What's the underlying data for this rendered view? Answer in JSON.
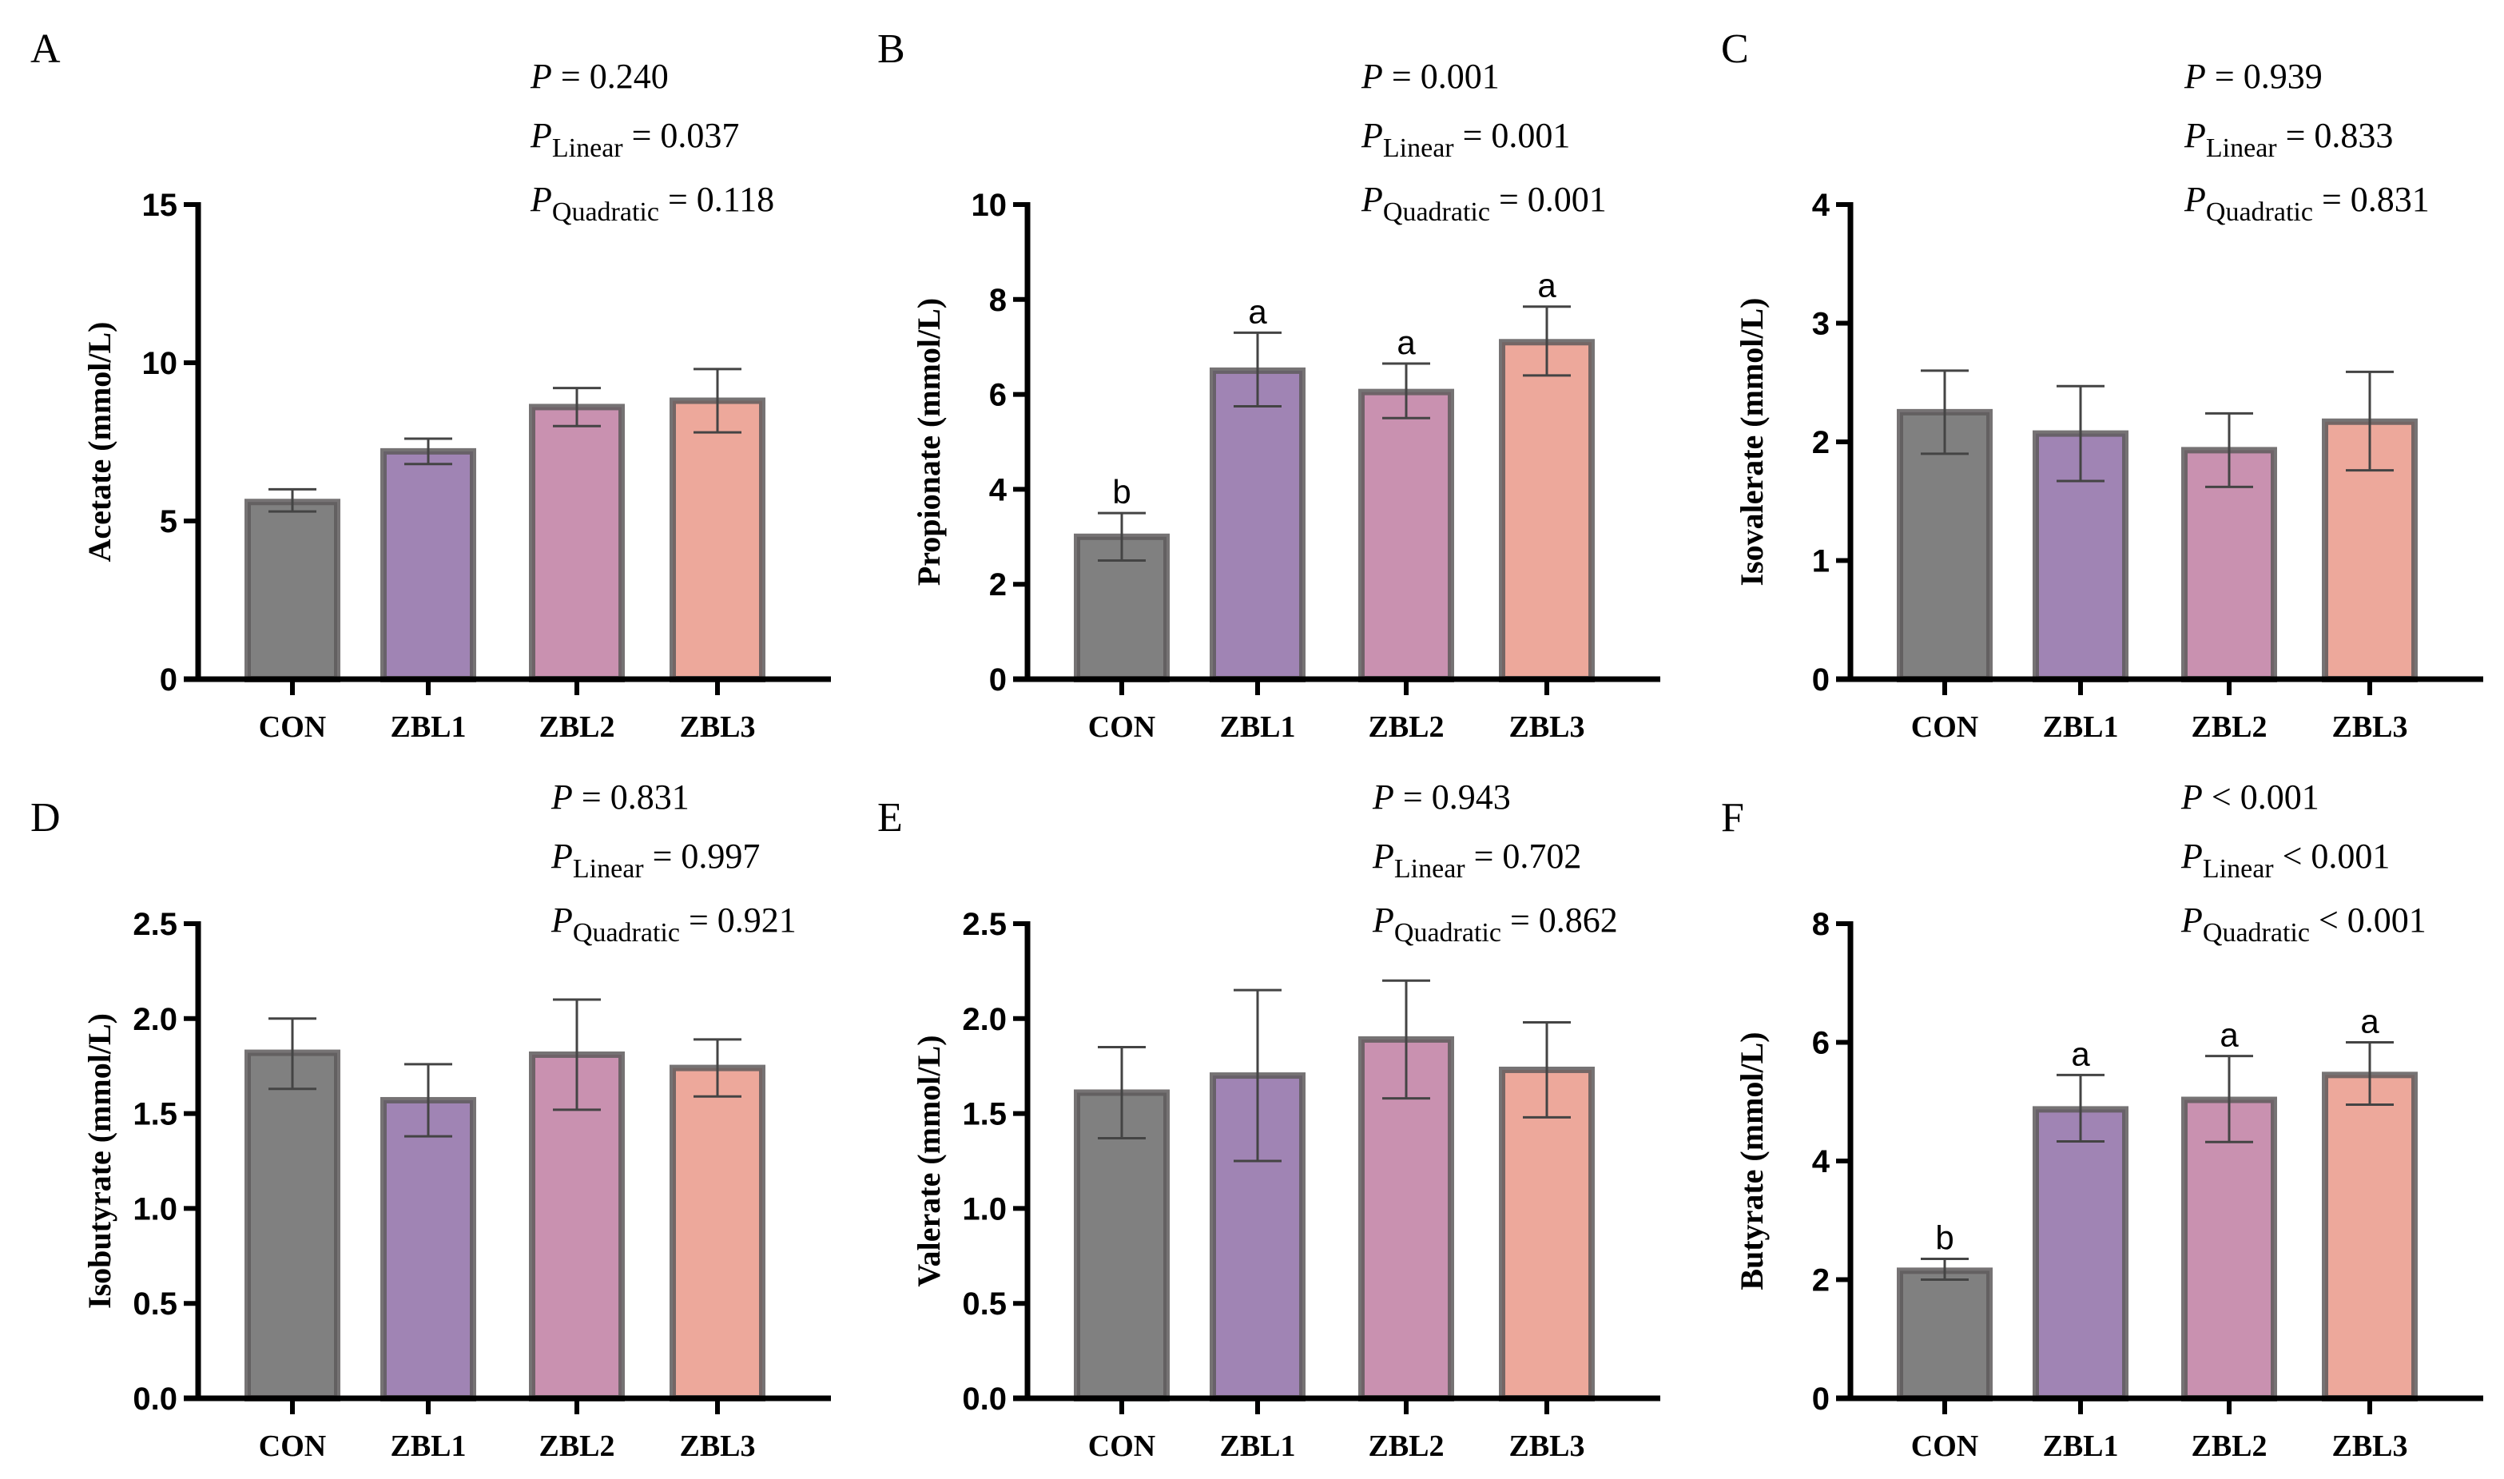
{
  "p_symbol": "P",
  "colors": {
    "CON": "#808080",
    "ZBL1": "#a084b4",
    "ZBL2": "#c991b0",
    "ZBL3": "#eda89b",
    "bar_edge": "#5e5a5c",
    "error": "#444444",
    "axis": "#000000"
  },
  "chart_data": [
    {
      "type": "bar",
      "panel": "A",
      "ylabel": "Acetate (mmol/L)",
      "categories": [
        "CON",
        "ZBL1",
        "ZBL2",
        "ZBL3"
      ],
      "values": [
        5.6,
        7.2,
        8.6,
        8.8
      ],
      "error_low": [
        5.3,
        6.8,
        8.0,
        7.8
      ],
      "error_high": [
        6.0,
        7.6,
        9.2,
        9.8
      ],
      "letters": [
        "",
        "",
        "",
        ""
      ],
      "ylim": [
        0,
        15
      ],
      "yticks": [
        "0",
        "5",
        "10",
        "15"
      ],
      "stats": [
        {
          "sub": "",
          "text": " = 0.240"
        },
        {
          "sub": "Linear",
          "text": " = 0.037"
        },
        {
          "sub": "Quadratic",
          "text": " = 0.118"
        }
      ]
    },
    {
      "type": "bar",
      "panel": "B",
      "ylabel": "Propionate (mmol/L)",
      "categories": [
        "CON",
        "ZBL1",
        "ZBL2",
        "ZBL3"
      ],
      "values": [
        3.0,
        6.5,
        6.05,
        7.1
      ],
      "error_low": [
        2.5,
        5.75,
        5.5,
        6.4
      ],
      "error_high": [
        3.5,
        7.3,
        6.65,
        7.85
      ],
      "letters": [
        "b",
        "a",
        "a",
        "a"
      ],
      "ylim": [
        0,
        10
      ],
      "yticks": [
        "0",
        "2",
        "4",
        "6",
        "8",
        "10"
      ],
      "stats": [
        {
          "sub": "",
          "text": " = 0.001"
        },
        {
          "sub": "Linear",
          "text": " = 0.001"
        },
        {
          "sub": "Quadratic",
          "text": " = 0.001"
        }
      ]
    },
    {
      "type": "bar",
      "panel": "C",
      "ylabel": "Isovalerate (mmol/L)",
      "categories": [
        "CON",
        "ZBL1",
        "ZBL2",
        "ZBL3"
      ],
      "values": [
        2.25,
        2.07,
        1.93,
        2.17
      ],
      "error_low": [
        1.9,
        1.67,
        1.62,
        1.76
      ],
      "error_high": [
        2.6,
        2.47,
        2.24,
        2.59
      ],
      "letters": [
        "",
        "",
        "",
        ""
      ],
      "ylim": [
        0,
        4
      ],
      "yticks": [
        "0",
        "1",
        "2",
        "3",
        "4"
      ],
      "stats": [
        {
          "sub": "",
          "text": " = 0.939"
        },
        {
          "sub": "Linear",
          "text": " = 0.833"
        },
        {
          "sub": "Quadratic",
          "text": " = 0.831"
        }
      ]
    },
    {
      "type": "bar",
      "panel": "D",
      "ylabel": "Isobutyrate (mmol/L)",
      "categories": [
        "CON",
        "ZBL1",
        "ZBL2",
        "ZBL3"
      ],
      "values": [
        1.82,
        1.57,
        1.81,
        1.74
      ],
      "error_low": [
        1.63,
        1.38,
        1.52,
        1.59
      ],
      "error_high": [
        2.0,
        1.76,
        2.1,
        1.89
      ],
      "letters": [
        "",
        "",
        "",
        ""
      ],
      "ylim": [
        0,
        2.5
      ],
      "yticks": [
        "0.0",
        "0.5",
        "1.0",
        "1.5",
        "2.0",
        "2.5"
      ],
      "stats": [
        {
          "sub": "",
          "text": " = 0.831"
        },
        {
          "sub": "Linear",
          "text": " = 0.997"
        },
        {
          "sub": "Quadratic",
          "text": " = 0.921"
        }
      ]
    },
    {
      "type": "bar",
      "panel": "E",
      "ylabel": "Valerate (mmol/L)",
      "categories": [
        "CON",
        "ZBL1",
        "ZBL2",
        "ZBL3"
      ],
      "values": [
        1.61,
        1.7,
        1.89,
        1.73
      ],
      "error_low": [
        1.37,
        1.25,
        1.58,
        1.48
      ],
      "error_high": [
        1.85,
        2.15,
        2.2,
        1.98
      ],
      "letters": [
        "",
        "",
        "",
        ""
      ],
      "ylim": [
        0,
        2.5
      ],
      "yticks": [
        "0.0",
        "0.5",
        "1.0",
        "1.5",
        "2.0",
        "2.5"
      ],
      "stats": [
        {
          "sub": "",
          "text": " = 0.943"
        },
        {
          "sub": "Linear",
          "text": " = 0.702"
        },
        {
          "sub": "Quadratic",
          "text": " = 0.862"
        }
      ]
    },
    {
      "type": "bar",
      "panel": "F",
      "ylabel": "Butyrate (mmol/L)",
      "categories": [
        "CON",
        "ZBL1",
        "ZBL2",
        "ZBL3"
      ],
      "values": [
        2.15,
        4.87,
        5.03,
        5.45
      ],
      "error_low": [
        2.0,
        4.33,
        4.32,
        4.95
      ],
      "error_high": [
        2.35,
        5.45,
        5.77,
        6.0
      ],
      "letters": [
        "b",
        "a",
        "a",
        "a"
      ],
      "ylim": [
        0,
        8
      ],
      "yticks": [
        "0",
        "2",
        "4",
        "6",
        "8"
      ],
      "stats": [
        {
          "sub": "",
          "text": " < 0.001"
        },
        {
          "sub": "Linear",
          "text": " < 0.001"
        },
        {
          "sub": "Quadratic",
          "text": " < 0.001"
        }
      ]
    }
  ]
}
